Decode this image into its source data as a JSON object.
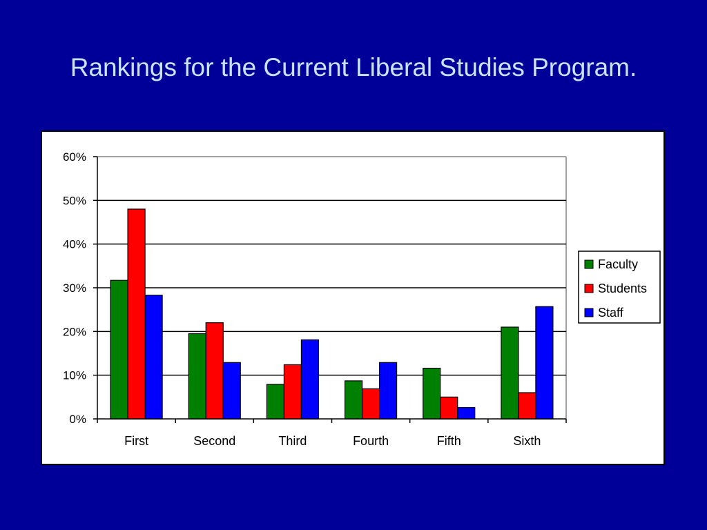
{
  "slide": {
    "title": "Rankings for the Current Liberal Studies Program."
  },
  "colors": {
    "background": "#000099",
    "title": "#c8e4ff",
    "faculty": "#008000",
    "students": "#ff0000",
    "staff": "#0000ff"
  },
  "chart_data": {
    "type": "bar",
    "title": "",
    "xlabel": "",
    "ylabel": "",
    "categories": [
      "First",
      "Second",
      "Third",
      "Fourth",
      "Fifth",
      "Sixth"
    ],
    "series": [
      {
        "name": "Faculty",
        "color": "#008000",
        "values": [
          31.7,
          19.5,
          7.9,
          8.7,
          11.6,
          21.0
        ]
      },
      {
        "name": "Students",
        "color": "#ff0000",
        "values": [
          48.0,
          22.0,
          12.4,
          6.9,
          5.0,
          6.0
        ]
      },
      {
        "name": "Staff",
        "color": "#0000ff",
        "values": [
          28.3,
          12.9,
          18.1,
          12.9,
          2.6,
          25.7
        ]
      }
    ],
    "ylim": [
      0,
      60
    ],
    "yticks": [
      "0%",
      "10%",
      "20%",
      "30%",
      "40%",
      "50%",
      "60%"
    ],
    "grid": true,
    "legend_position": "right"
  }
}
